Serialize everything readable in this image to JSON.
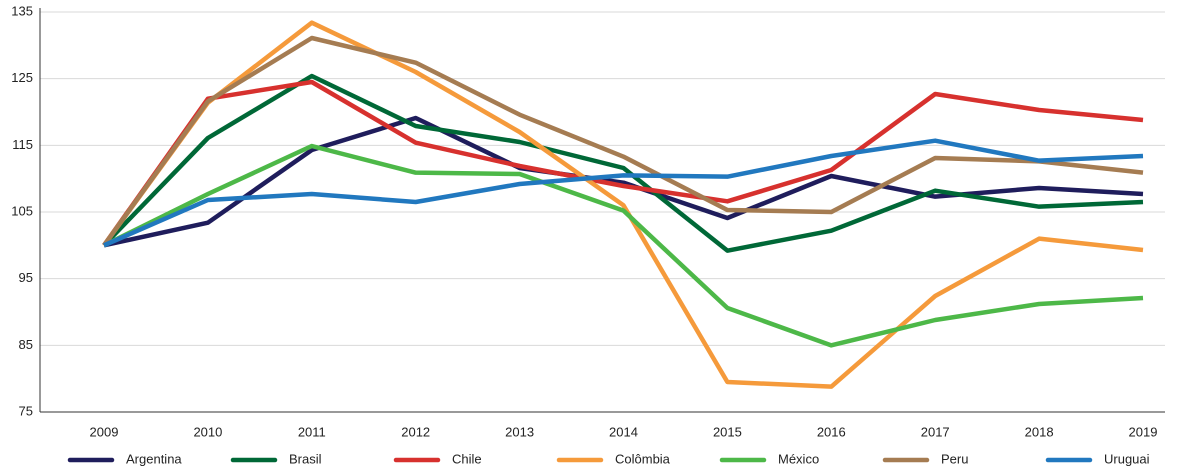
{
  "chart_data": {
    "type": "line",
    "categories": [
      "2009",
      "2010",
      "2011",
      "2012",
      "2013",
      "2014",
      "2015",
      "2016",
      "2017",
      "2018",
      "2019"
    ],
    "series": [
      {
        "name": "Argentina",
        "color": "#1f1d5c",
        "values": [
          100,
          103.4,
          114.3,
          119.1,
          111.6,
          109.4,
          104.1,
          110.4,
          107.3,
          108.6,
          107.7
        ]
      },
      {
        "name": "Brasil",
        "color": "#006837",
        "values": [
          100,
          116.1,
          125.4,
          117.9,
          115.5,
          111.6,
          99.2,
          102.2,
          108.2,
          105.8,
          106.5
        ]
      },
      {
        "name": "Chile",
        "color": "#d7312e",
        "values": [
          100,
          122.0,
          124.5,
          115.4,
          111.9,
          108.9,
          106.6,
          111.3,
          122.7,
          120.3,
          118.8
        ]
      },
      {
        "name": "Colômbia",
        "color": "#f59a3b",
        "values": [
          100,
          121.4,
          133.4,
          126.0,
          117.0,
          106.0,
          79.5,
          78.8,
          92.4,
          101.0,
          99.3
        ]
      },
      {
        "name": "México",
        "color": "#4db848",
        "values": [
          100,
          107.7,
          114.9,
          110.9,
          110.7,
          105.2,
          90.6,
          85.0,
          88.8,
          91.2,
          92.1
        ]
      },
      {
        "name": "Peru",
        "color": "#a57c52",
        "values": [
          100,
          121.6,
          131.1,
          127.4,
          119.6,
          113.3,
          105.3,
          105.0,
          113.1,
          112.6,
          110.9
        ]
      },
      {
        "name": "Uruguai",
        "color": "#2178bf",
        "values": [
          100,
          106.8,
          107.7,
          106.5,
          109.2,
          110.5,
          110.3,
          113.4,
          115.7,
          112.7,
          113.4
        ]
      }
    ],
    "ylim": [
      75,
      135
    ],
    "yticks": [
      75,
      85,
      95,
      105,
      115,
      125,
      135
    ],
    "grid": true,
    "legend": "bottom"
  }
}
